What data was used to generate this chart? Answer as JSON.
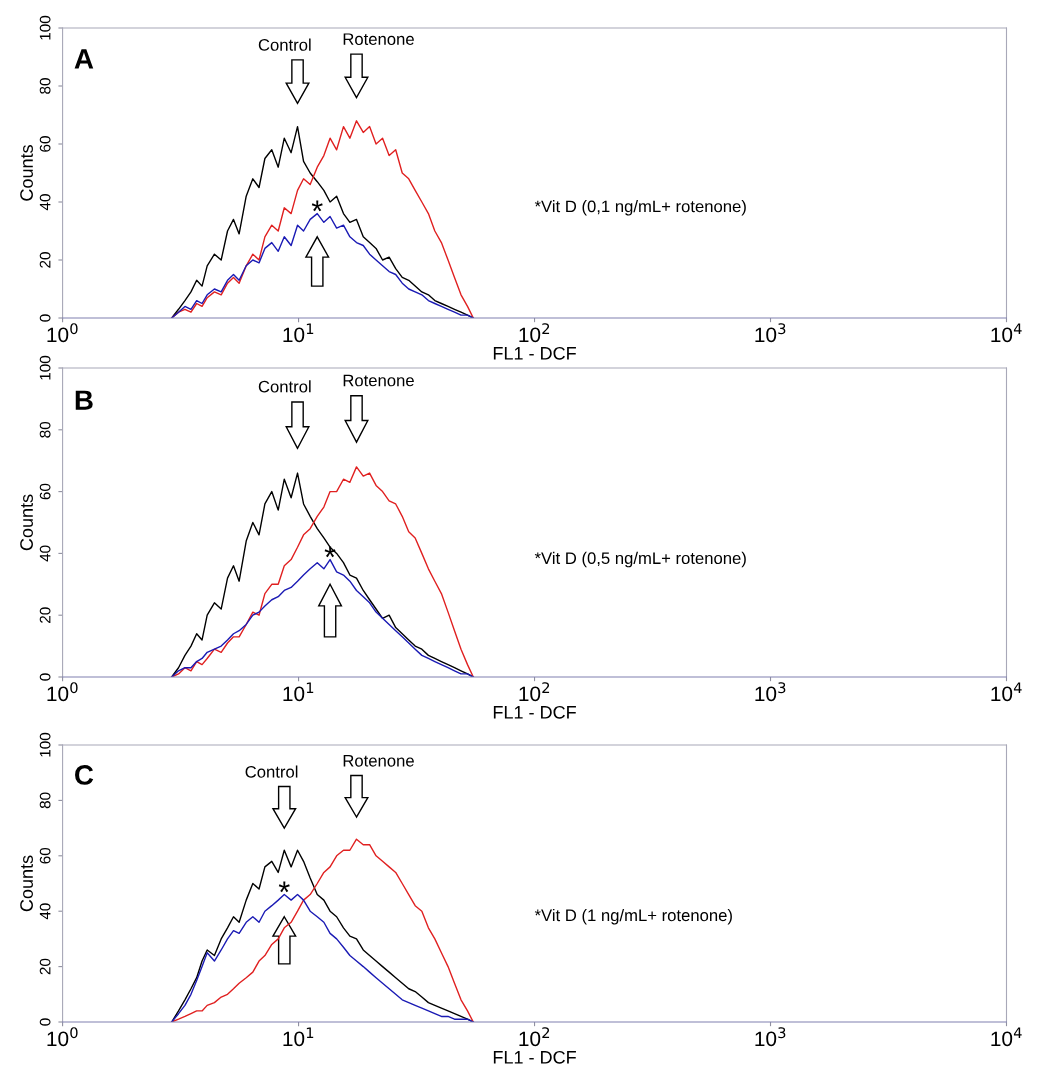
{
  "chart_data": [
    {
      "type": "line",
      "title": "A",
      "xlabel": "FL1 - DCF",
      "ylabel": "Counts",
      "log": "x",
      "xlim": [
        1,
        10000
      ],
      "ylim": [
        0,
        100
      ],
      "xticks": [
        {
          "value": 1,
          "label": "10$^{0}$"
        },
        {
          "value": 10,
          "label": "10$^{1}$"
        },
        {
          "value": 100,
          "label": "10$^{2}$"
        },
        {
          "value": 1000,
          "label": "10$^{3}$"
        },
        {
          "value": 10000,
          "label": "10$^{4}$"
        }
      ],
      "yticks": [
        0,
        20,
        40,
        60,
        80,
        100
      ],
      "x": [
        2.9,
        3.1,
        3.3,
        3.5,
        3.7,
        3.9,
        4.1,
        4.4,
        4.7,
        5,
        5.3,
        5.6,
        6,
        6.4,
        6.8,
        7.2,
        7.7,
        8.2,
        8.7,
        9.3,
        9.9,
        10.5,
        11.2,
        12,
        12.8,
        13.6,
        14.5,
        15.5,
        16.5,
        17.6,
        18.8,
        20,
        21.3,
        22.7,
        24.2,
        25.8,
        27.5,
        29.3,
        31.2,
        33.3,
        35.5,
        37.8,
        40.3,
        43,
        45.8,
        48.8,
        52,
        55
      ],
      "series": [
        {
          "color": "#000000",
          "values": [
            0,
            3,
            6,
            9,
            13,
            11,
            18,
            22,
            20,
            30,
            34,
            29,
            42,
            48,
            45,
            55,
            58,
            52,
            62,
            57,
            66,
            54,
            50,
            47,
            44,
            40,
            42,
            36,
            33,
            34,
            28,
            26,
            24,
            20,
            21,
            17,
            14,
            13,
            11,
            9,
            8,
            6,
            5,
            4,
            3,
            2,
            1,
            0
          ]
        },
        {
          "color": "#e02020",
          "values": [
            0,
            2,
            3,
            2,
            5,
            4,
            7,
            9,
            8,
            12,
            14,
            12,
            18,
            22,
            20,
            28,
            32,
            30,
            38,
            36,
            44,
            48,
            46,
            52,
            56,
            62,
            58,
            66,
            62,
            68,
            64,
            66,
            60,
            62,
            56,
            58,
            50,
            48,
            44,
            40,
            36,
            30,
            26,
            20,
            14,
            8,
            4,
            0
          ]
        },
        {
          "color": "#1a1ab4",
          "values": [
            0,
            2,
            4,
            3,
            6,
            5,
            8,
            10,
            9,
            13,
            15,
            13,
            18,
            20,
            19,
            24,
            26,
            23,
            28,
            25,
            32,
            30,
            34,
            36,
            33,
            35,
            31,
            32,
            28,
            26,
            25,
            22,
            20,
            18,
            16,
            15,
            12,
            10,
            9,
            8,
            6,
            5,
            4,
            3,
            2,
            1,
            1,
            0
          ]
        }
      ],
      "annotations": [
        "Control",
        "Rotenone",
        "*",
        "*Vit D (0,1 ng/mL+ rotenone)"
      ]
    },
    {
      "type": "line",
      "title": "B",
      "xlabel": "FL1 - DCF",
      "ylabel": "Counts",
      "log": "x",
      "xlim": [
        1,
        10000
      ],
      "ylim": [
        0,
        100
      ],
      "xticks": [
        {
          "value": 1,
          "label": "10$^{0}$"
        },
        {
          "value": 10,
          "label": "10$^{1}$"
        },
        {
          "value": 100,
          "label": "10$^{2}$"
        },
        {
          "value": 1000,
          "label": "10$^{3}$"
        },
        {
          "value": 10000,
          "label": "10$^{4}$"
        }
      ],
      "yticks": [
        0,
        20,
        40,
        60,
        80,
        100
      ],
      "x": [
        2.9,
        3.1,
        3.3,
        3.5,
        3.7,
        3.9,
        4.1,
        4.4,
        4.7,
        5,
        5.3,
        5.6,
        6,
        6.4,
        6.8,
        7.2,
        7.7,
        8.2,
        8.7,
        9.3,
        9.9,
        10.5,
        11.2,
        12,
        12.8,
        13.6,
        14.5,
        15.5,
        16.5,
        17.6,
        18.8,
        20,
        21.3,
        22.7,
        24.2,
        25.8,
        27.5,
        29.3,
        31.2,
        33.3,
        35.5,
        37.8,
        40.3,
        43,
        45.8,
        48.8,
        52,
        55
      ],
      "series": [
        {
          "color": "#000000",
          "values": [
            0,
            3,
            7,
            10,
            14,
            12,
            20,
            24,
            22,
            32,
            36,
            31,
            44,
            50,
            46,
            56,
            60,
            54,
            64,
            58,
            66,
            56,
            52,
            48,
            45,
            42,
            40,
            37,
            33,
            32,
            28,
            25,
            22,
            19,
            20,
            16,
            14,
            12,
            10,
            9,
            7,
            6,
            5,
            4,
            3,
            2,
            1,
            0
          ]
        },
        {
          "color": "#e02020",
          "values": [
            0,
            1,
            3,
            2,
            5,
            4,
            6,
            9,
            8,
            11,
            13,
            13,
            17,
            21,
            20,
            27,
            30,
            30,
            36,
            38,
            42,
            46,
            48,
            52,
            55,
            60,
            60,
            64,
            63,
            68,
            65,
            66,
            62,
            60,
            57,
            56,
            52,
            47,
            45,
            40,
            35,
            31,
            27,
            21,
            15,
            9,
            4,
            0
          ]
        },
        {
          "color": "#1a1ab4",
          "values": [
            0,
            2,
            3,
            3,
            5,
            6,
            8,
            9,
            10,
            12,
            14,
            15,
            17,
            20,
            21,
            23,
            25,
            26,
            28,
            29,
            31,
            33,
            35,
            37,
            35,
            38,
            34,
            33,
            31,
            28,
            26,
            24,
            21,
            19,
            17,
            15,
            13,
            11,
            9,
            7,
            6,
            5,
            4,
            3,
            2,
            1,
            1,
            0
          ]
        }
      ],
      "annotations": [
        "Control",
        "Rotenone",
        "*",
        "*Vit D (0,5 ng/mL+ rotenone)"
      ]
    },
    {
      "type": "line",
      "title": "C",
      "xlabel": "FL1 - DCF",
      "ylabel": "Counts",
      "log": "x",
      "xlim": [
        1,
        10000
      ],
      "ylim": [
        0,
        100
      ],
      "xticks": [
        {
          "value": 1,
          "label": "10$^{0}$"
        },
        {
          "value": 10,
          "label": "10$^{1}$"
        },
        {
          "value": 100,
          "label": "10$^{2}$"
        },
        {
          "value": 1000,
          "label": "10$^{3}$"
        },
        {
          "value": 10000,
          "label": "10$^{4}$"
        }
      ],
      "yticks": [
        0,
        20,
        40,
        60,
        80,
        100
      ],
      "x": [
        2.9,
        3.1,
        3.3,
        3.5,
        3.7,
        3.9,
        4.1,
        4.4,
        4.7,
        5,
        5.3,
        5.6,
        6,
        6.4,
        6.8,
        7.2,
        7.7,
        8.2,
        8.7,
        9.3,
        9.9,
        10.5,
        11.2,
        12,
        12.8,
        13.6,
        14.5,
        15.5,
        16.5,
        17.6,
        18.8,
        20,
        21.3,
        22.7,
        24.2,
        25.8,
        27.5,
        29.3,
        31.2,
        33.3,
        35.5,
        37.8,
        40.3,
        43,
        45.8,
        48.8,
        52,
        55
      ],
      "series": [
        {
          "color": "#000000",
          "values": [
            0,
            4,
            8,
            12,
            16,
            22,
            26,
            24,
            30,
            34,
            38,
            36,
            44,
            50,
            48,
            56,
            58,
            54,
            62,
            56,
            62,
            58,
            52,
            46,
            44,
            40,
            38,
            34,
            31,
            30,
            26,
            24,
            22,
            20,
            18,
            16,
            14,
            12,
            11,
            9,
            7,
            6,
            5,
            4,
            3,
            2,
            1,
            0
          ]
        },
        {
          "color": "#e02020",
          "values": [
            0,
            1,
            2,
            3,
            4,
            4,
            6,
            7,
            9,
            10,
            12,
            14,
            16,
            18,
            22,
            24,
            28,
            30,
            34,
            36,
            40,
            44,
            46,
            50,
            54,
            56,
            60,
            62,
            62,
            66,
            64,
            64,
            60,
            58,
            56,
            54,
            50,
            46,
            42,
            40,
            34,
            30,
            25,
            20,
            14,
            8,
            4,
            0
          ]
        },
        {
          "color": "#1a1ab4",
          "values": [
            0,
            3,
            6,
            10,
            15,
            20,
            25,
            22,
            26,
            30,
            33,
            32,
            36,
            38,
            36,
            40,
            42,
            44,
            46,
            44,
            46,
            44,
            40,
            38,
            36,
            32,
            30,
            27,
            24,
            22,
            20,
            18,
            16,
            14,
            12,
            10,
            8,
            7,
            6,
            5,
            4,
            3,
            2,
            2,
            1,
            1,
            1,
            0
          ]
        }
      ],
      "annotations": [
        "Control",
        "Rotenone",
        "*",
        "*Vit D (1 ng/mL+ rotenone)"
      ]
    }
  ]
}
